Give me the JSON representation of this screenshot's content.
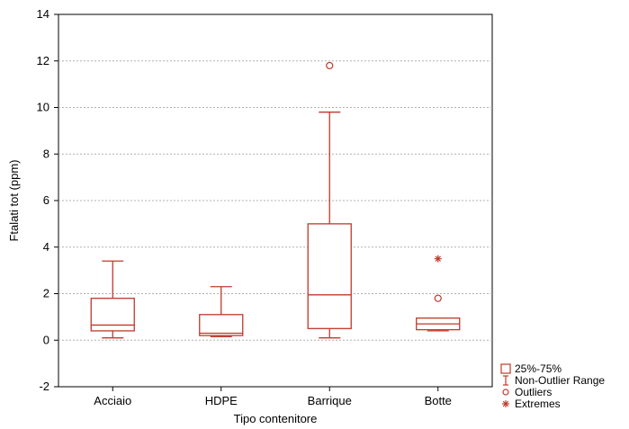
{
  "chart_data": {
    "type": "boxplot",
    "xlabel": "Tipo contenitore",
    "ylabel": "Ftalati tot (ppm)",
    "ylim": [
      -2,
      14
    ],
    "yticks": [
      -2,
      0,
      2,
      4,
      6,
      8,
      10,
      12,
      14
    ],
    "grid": true,
    "categories": [
      "Acciaio",
      "HDPE",
      "Barrique",
      "Botte"
    ],
    "boxes": [
      {
        "category": "Acciaio",
        "whisker_low": 0.1,
        "q1": 0.4,
        "median": 0.65,
        "q3": 1.8,
        "whisker_high": 3.4,
        "outliers": [],
        "extremes": []
      },
      {
        "category": "HDPE",
        "whisker_low": 0.15,
        "q1": 0.2,
        "median": 0.3,
        "q3": 1.1,
        "whisker_high": 2.3,
        "outliers": [],
        "extremes": []
      },
      {
        "category": "Barrique",
        "whisker_low": 0.1,
        "q1": 0.5,
        "median": 1.95,
        "q3": 5.0,
        "whisker_high": 9.8,
        "outliers": [
          11.8
        ],
        "extremes": []
      },
      {
        "category": "Botte",
        "whisker_low": 0.4,
        "q1": 0.45,
        "median": 0.7,
        "q3": 0.95,
        "whisker_high": 0.95,
        "outliers": [
          1.8
        ],
        "extremes": [
          3.5
        ]
      }
    ],
    "color": "#c0392b",
    "legend": {
      "placement": "bottom-right",
      "items": [
        {
          "symbol": "box",
          "label": "25%-75%"
        },
        {
          "symbol": "whisker",
          "label": "Non-Outlier Range"
        },
        {
          "symbol": "circle",
          "label": "Outliers"
        },
        {
          "symbol": "star",
          "label": "Extremes"
        }
      ]
    }
  }
}
